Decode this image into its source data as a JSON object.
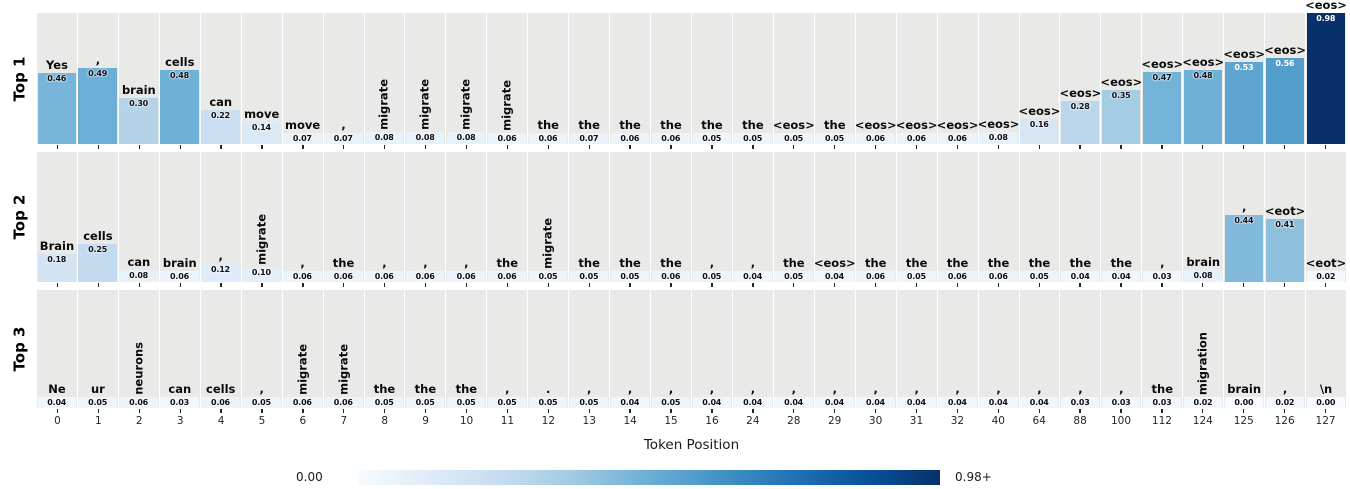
{
  "chart_data": {
    "type": "bar",
    "title": "",
    "xlabel": "Token Position",
    "ylabel": "",
    "colormap": "Blues",
    "grid": "white vertical gridlines on gray panels",
    "legend_position": "colorbar bottom center",
    "colorbar": {
      "min_label": "0.00",
      "max_label": "0.98+",
      "vmin": 0,
      "vmax": 0.98
    },
    "positions": [
      "0",
      "1",
      "2",
      "3",
      "4",
      "5",
      "6",
      "7",
      "8",
      "9",
      "10",
      "11",
      "12",
      "13",
      "14",
      "15",
      "16",
      "24",
      "28",
      "29",
      "30",
      "31",
      "32",
      "40",
      "64",
      "88",
      "100",
      "112",
      "124",
      "125",
      "126",
      "127"
    ],
    "rows": [
      {
        "label": "Top 1",
        "tokens": [
          "Yes",
          ",",
          "brain",
          "cells",
          "can",
          "move",
          "move",
          ",",
          "migrate",
          "migrate",
          "migrate",
          "migrate",
          "the",
          "the",
          "the",
          "the",
          "the",
          "the",
          "<eos>",
          "the",
          "<eos>",
          "<eos>",
          "<eos>",
          "<eos>",
          "<eos>",
          "<eos>",
          "<eos>",
          "<eos>",
          "<eos>",
          "<eos>",
          "<eos>",
          "<eos>"
        ],
        "values": [
          0.46,
          0.49,
          0.3,
          0.48,
          0.22,
          0.14,
          0.07,
          0.07,
          0.08,
          0.08,
          0.08,
          0.06,
          0.06,
          0.07,
          0.06,
          0.06,
          0.05,
          0.05,
          0.05,
          0.05,
          0.06,
          0.06,
          0.06,
          0.08,
          0.16,
          0.28,
          0.35,
          0.47,
          0.48,
          0.53,
          0.56,
          0.98
        ]
      },
      {
        "label": "Top 2",
        "tokens": [
          "Brain",
          "cells",
          "can",
          "brain",
          ",",
          "migrate",
          ",",
          "the",
          ",",
          ",",
          ",",
          "the",
          "migrate",
          "the",
          "the",
          "the",
          ",",
          ",",
          "the",
          "<eos>",
          "the",
          "the",
          "the",
          "the",
          "the",
          "the",
          "the",
          ",",
          "brain",
          ",",
          "<eot>",
          "<eot>"
        ],
        "values": [
          0.18,
          0.25,
          0.08,
          0.06,
          0.12,
          0.1,
          0.06,
          0.06,
          0.06,
          0.06,
          0.06,
          0.06,
          0.05,
          0.05,
          0.05,
          0.06,
          0.05,
          0.04,
          0.05,
          0.04,
          0.06,
          0.05,
          0.06,
          0.06,
          0.05,
          0.04,
          0.04,
          0.03,
          0.08,
          0.44,
          0.41,
          0.02
        ]
      },
      {
        "label": "Top 3",
        "tokens": [
          "Ne",
          "ur",
          "neurons",
          "can",
          "cells",
          ",",
          "migrate",
          "migrate",
          "the",
          "the",
          "the",
          ",",
          ".",
          ",",
          ",",
          ",",
          ",",
          ",",
          ",",
          ",",
          ",",
          ",",
          ",",
          ",",
          ",",
          ",",
          ",",
          "the",
          "migration",
          "brain",
          ",",
          "\\n"
        ],
        "values": [
          0.04,
          0.05,
          0.06,
          0.03,
          0.06,
          0.05,
          0.06,
          0.06,
          0.05,
          0.05,
          0.05,
          0.05,
          0.05,
          0.05,
          0.04,
          0.05,
          0.04,
          0.04,
          0.04,
          0.04,
          0.04,
          0.04,
          0.04,
          0.04,
          0.04,
          0.03,
          0.03,
          0.03,
          0.02,
          0.0,
          0.02,
          0.0
        ]
      }
    ]
  }
}
